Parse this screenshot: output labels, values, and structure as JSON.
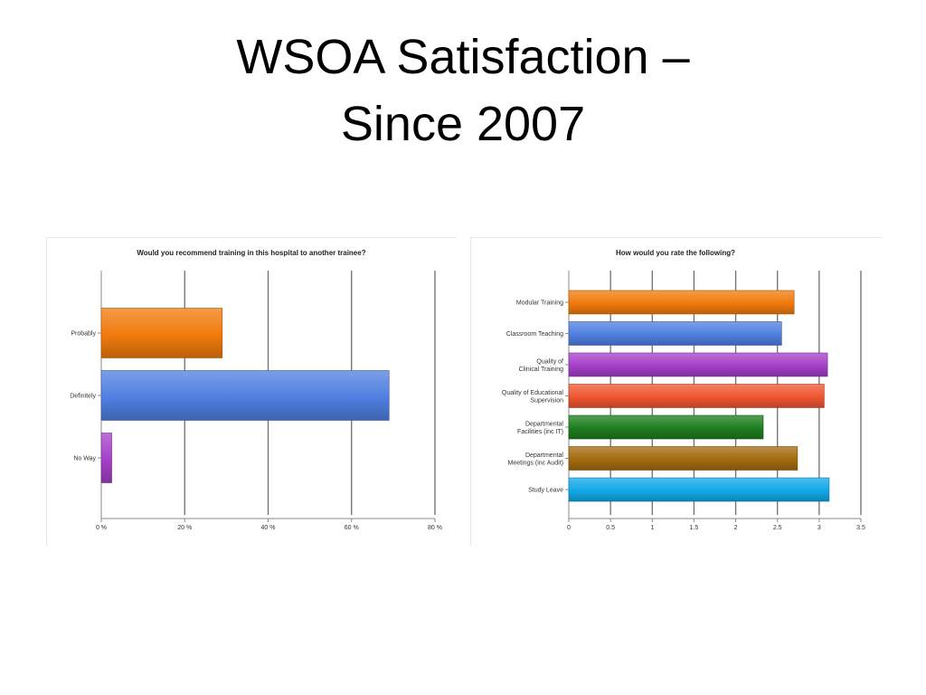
{
  "slide": {
    "title_line1": "WSOA Satisfaction –",
    "title_line2": "Since 2007"
  },
  "chart_data": [
    {
      "type": "bar",
      "orientation": "horizontal",
      "title": "Would you recommend training in this hospital to another trainee?",
      "categories": [
        "Probably",
        "Definitely",
        "No Way"
      ],
      "values": [
        29,
        69,
        2.5
      ],
      "colors": [
        "#f07a0c",
        "#4f7fe0",
        "#a53fc8"
      ],
      "xlim": [
        0,
        80
      ],
      "xticks": [
        0,
        20,
        40,
        60,
        80
      ],
      "xtick_labels": [
        "0 %",
        "20 %",
        "40 %",
        "60 %",
        "80 %"
      ],
      "grid": "vertical"
    },
    {
      "type": "bar",
      "orientation": "horizontal",
      "title": "How would you rate the following?",
      "categories": [
        "Modular Training",
        "Classroom Teaching",
        "Quality of\nClinical Training",
        "Quality of Educational\nSupervision",
        "Departmental\nFacilities (inc IT)",
        "Departmental\nMeetings (inc Audit)",
        "Study Leave"
      ],
      "values": [
        2.7,
        2.55,
        3.1,
        3.06,
        2.33,
        2.74,
        3.12
      ],
      "colors": [
        "#f07a0c",
        "#4f7fe0",
        "#a53fc8",
        "#ef5530",
        "#1d7d1d",
        "#a46a0e",
        "#12a8e8"
      ],
      "xlim": [
        0,
        3.5
      ],
      "xticks": [
        0,
        0.5,
        1,
        1.5,
        2,
        2.5,
        3,
        3.5
      ],
      "xtick_labels": [
        "0",
        "0.5",
        "1",
        "1.5",
        "2",
        "2.5",
        "3",
        "3.5"
      ],
      "grid": "vertical"
    }
  ]
}
